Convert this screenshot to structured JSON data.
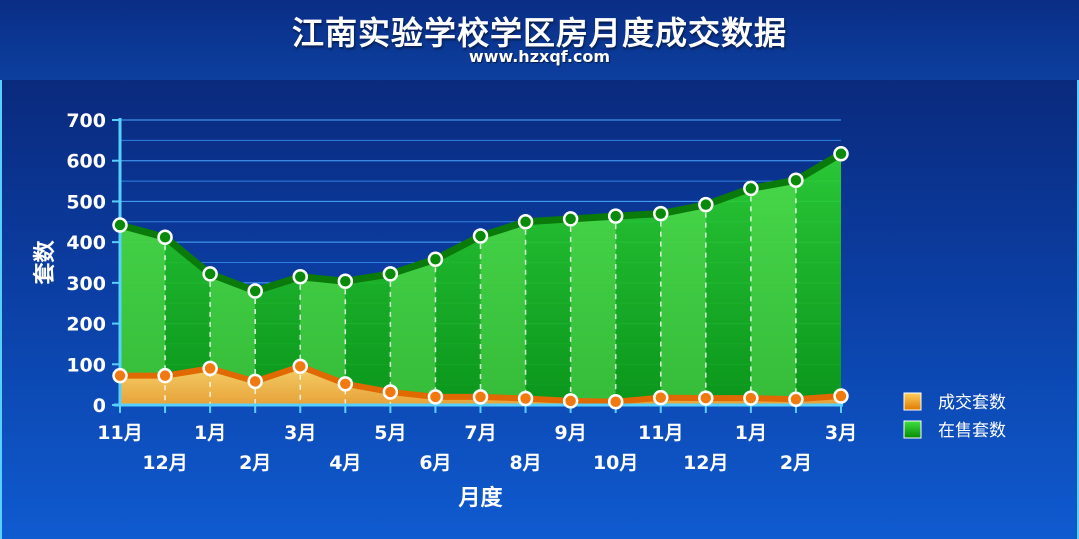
{
  "header": {
    "title": "江南实验学校学区房月度成交数据",
    "subtitle": "www.hzxqf.com"
  },
  "chart_data": {
    "type": "area",
    "title": "江南实验学校学区房月度成交数据",
    "subtitle": "www.hzxqf.com",
    "xlabel": "月度",
    "ylabel": "套数",
    "ylim": [
      0,
      700
    ],
    "yticks": [
      0,
      100,
      200,
      300,
      400,
      500,
      600,
      700
    ],
    "grid": true,
    "legend_position": "bottom-right",
    "categories": [
      "11月",
      "12月",
      "1月",
      "2月",
      "3月",
      "4月",
      "5月",
      "6月",
      "7月",
      "8月",
      "9月",
      "10月",
      "11月",
      "12月",
      "1月",
      "2月",
      "3月"
    ],
    "series": [
      {
        "name": "成交套数",
        "color": "#f0a020",
        "values": [
          72,
          72,
          90,
          58,
          95,
          52,
          32,
          20,
          20,
          16,
          10,
          8,
          18,
          17,
          17,
          14,
          22
        ]
      },
      {
        "name": "在售套数",
        "color": "#10c010",
        "values": [
          442,
          412,
          322,
          280,
          315,
          304,
          322,
          358,
          415,
          450,
          457,
          464,
          470,
          492,
          532,
          552,
          617
        ]
      }
    ]
  }
}
